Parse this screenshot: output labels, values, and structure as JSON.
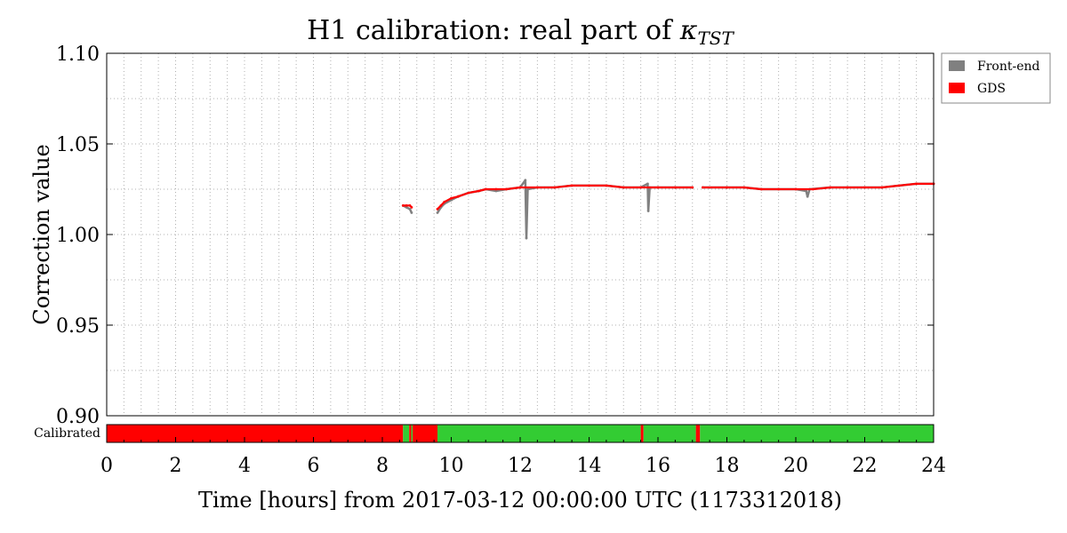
{
  "chart_data": {
    "type": "line",
    "title_main": "H1 calibration: real part of ",
    "title_symbol": "κ",
    "title_subscript": "TST",
    "xlabel": "Time [hours] from 2017-03-12 00:00:00 UTC (1173312018)",
    "ylabel": "Correction value",
    "xlim": [
      0,
      24
    ],
    "ylim": [
      0.9,
      1.1
    ],
    "x_ticks": [
      0,
      2,
      4,
      6,
      8,
      10,
      12,
      14,
      16,
      18,
      20,
      22,
      24
    ],
    "y_ticks": [
      0.9,
      0.95,
      1.0,
      1.05,
      1.1
    ],
    "y_tick_labels": [
      "0.90",
      "0.95",
      "1.00",
      "1.05",
      "1.10"
    ],
    "grid": true,
    "legend_position": "outside-top-right",
    "legend": [
      {
        "name": "Front-end",
        "color": "#808080"
      },
      {
        "name": "GDS",
        "color": "#ff0000"
      }
    ],
    "series": [
      {
        "name": "Front-end",
        "color": "#808080",
        "segments": [
          [
            [
              8.6,
              1.016
            ],
            [
              8.7,
              1.015
            ],
            [
              8.8,
              1.014
            ],
            [
              8.85,
              1.012
            ]
          ],
          [
            [
              9.6,
              1.012
            ],
            [
              9.7,
              1.015
            ],
            [
              9.8,
              1.017
            ],
            [
              10.0,
              1.019
            ],
            [
              10.2,
              1.021
            ],
            [
              10.5,
              1.023
            ],
            [
              10.8,
              1.024
            ],
            [
              11.0,
              1.025
            ],
            [
              11.3,
              1.024
            ],
            [
              11.6,
              1.025
            ],
            [
              12.0,
              1.026
            ],
            [
              12.15,
              1.03
            ],
            [
              12.18,
              0.998
            ],
            [
              12.22,
              1.025
            ],
            [
              12.5,
              1.026
            ],
            [
              13.0,
              1.026
            ],
            [
              13.5,
              1.027
            ],
            [
              14.0,
              1.027
            ],
            [
              14.5,
              1.027
            ],
            [
              15.0,
              1.026
            ],
            [
              15.5,
              1.026
            ],
            [
              15.7,
              1.028
            ],
            [
              15.72,
              1.013
            ],
            [
              15.76,
              1.026
            ],
            [
              16.0,
              1.026
            ],
            [
              16.5,
              1.026
            ],
            [
              17.0,
              1.026
            ]
          ],
          [
            [
              17.3,
              1.026
            ],
            [
              18.0,
              1.026
            ],
            [
              18.5,
              1.026
            ],
            [
              19.0,
              1.025
            ],
            [
              19.5,
              1.025
            ],
            [
              20.0,
              1.025
            ],
            [
              20.3,
              1.024
            ],
            [
              20.34,
              1.021
            ],
            [
              20.4,
              1.025
            ],
            [
              21.0,
              1.026
            ],
            [
              21.5,
              1.026
            ],
            [
              22.0,
              1.026
            ],
            [
              22.5,
              1.026
            ],
            [
              23.0,
              1.027
            ],
            [
              23.5,
              1.028
            ],
            [
              24.0,
              1.028
            ]
          ]
        ]
      },
      {
        "name": "GDS",
        "color": "#ff0000",
        "segments": [
          [
            [
              8.6,
              1.016
            ],
            [
              8.7,
              1.016
            ],
            [
              8.8,
              1.016
            ],
            [
              8.85,
              1.015
            ]
          ],
          [
            [
              9.6,
              1.014
            ],
            [
              9.7,
              1.016
            ],
            [
              9.8,
              1.018
            ],
            [
              10.0,
              1.02
            ],
            [
              10.2,
              1.021
            ],
            [
              10.5,
              1.023
            ],
            [
              10.8,
              1.024
            ],
            [
              11.0,
              1.025
            ],
            [
              11.3,
              1.025
            ],
            [
              11.6,
              1.025
            ],
            [
              12.0,
              1.026
            ],
            [
              12.5,
              1.026
            ],
            [
              13.0,
              1.026
            ],
            [
              13.5,
              1.027
            ],
            [
              14.0,
              1.027
            ],
            [
              14.5,
              1.027
            ],
            [
              15.0,
              1.026
            ],
            [
              15.5,
              1.026
            ],
            [
              16.0,
              1.026
            ],
            [
              16.5,
              1.026
            ],
            [
              17.0,
              1.026
            ]
          ],
          [
            [
              17.3,
              1.026
            ],
            [
              18.0,
              1.026
            ],
            [
              18.5,
              1.026
            ],
            [
              19.0,
              1.025
            ],
            [
              19.5,
              1.025
            ],
            [
              20.0,
              1.025
            ],
            [
              20.5,
              1.025
            ],
            [
              21.0,
              1.026
            ],
            [
              21.5,
              1.026
            ],
            [
              22.0,
              1.026
            ],
            [
              22.5,
              1.026
            ],
            [
              23.0,
              1.027
            ],
            [
              23.5,
              1.028
            ],
            [
              24.0,
              1.028
            ]
          ]
        ]
      }
    ],
    "segment_bar": {
      "label": "Calibrated",
      "colors": {
        "calibrated": "#33cc33",
        "uncalibrated": "#ff0000"
      },
      "segments": [
        {
          "start": 0.0,
          "end": 8.6,
          "state": "uncalibrated"
        },
        {
          "start": 8.6,
          "end": 8.78,
          "state": "calibrated"
        },
        {
          "start": 8.78,
          "end": 8.84,
          "state": "uncalibrated"
        },
        {
          "start": 8.84,
          "end": 8.88,
          "state": "calibrated"
        },
        {
          "start": 8.88,
          "end": 9.6,
          "state": "uncalibrated"
        },
        {
          "start": 9.6,
          "end": 15.5,
          "state": "calibrated"
        },
        {
          "start": 15.5,
          "end": 15.58,
          "state": "uncalibrated"
        },
        {
          "start": 15.58,
          "end": 17.1,
          "state": "calibrated"
        },
        {
          "start": 17.1,
          "end": 17.22,
          "state": "uncalibrated"
        },
        {
          "start": 17.22,
          "end": 24.0,
          "state": "calibrated"
        }
      ]
    }
  }
}
